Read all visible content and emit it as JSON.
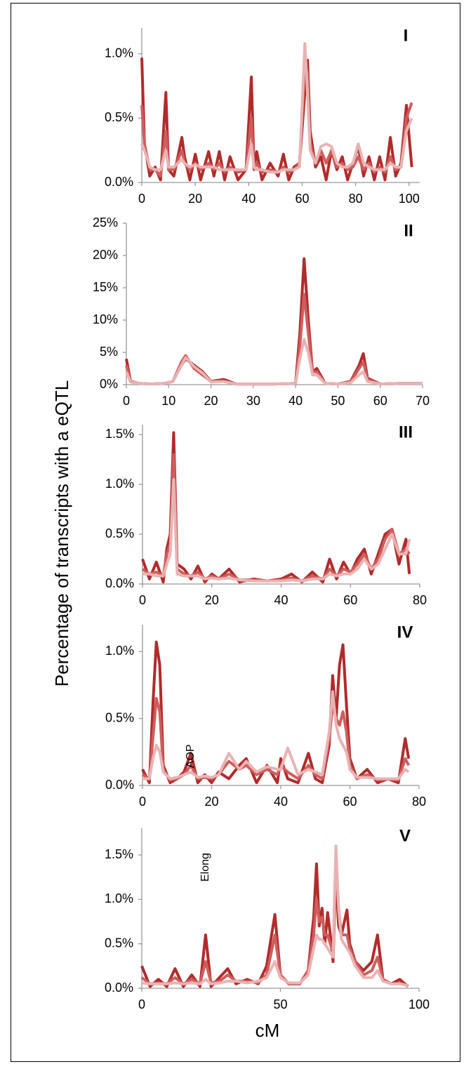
{
  "ylabel": "Percentage of transcripts with a eQTL",
  "xlabel": "cM",
  "chart_data": [
    {
      "type": "line",
      "label": "I",
      "xlim": [
        0,
        104
      ],
      "ylim": [
        0,
        1.2
      ],
      "xticks": [
        0,
        20,
        40,
        60,
        80,
        100
      ],
      "yticks": [
        {
          "value": 0,
          "label": "0.0%"
        },
        {
          "value": 0.5,
          "label": "0.5%"
        },
        {
          "value": 1,
          "label": "1.0%"
        }
      ],
      "x": [
        0,
        1,
        3,
        5,
        7,
        9,
        10,
        12,
        15,
        16,
        18,
        20,
        22,
        25,
        27,
        29,
        31,
        33,
        36,
        39,
        41,
        42,
        43,
        45,
        48,
        51,
        53,
        55,
        57,
        59,
        61,
        62,
        63,
        65,
        67,
        69,
        71,
        73,
        75,
        77,
        79,
        81,
        83,
        85,
        87,
        89,
        91,
        93,
        95,
        97,
        99,
        101
      ],
      "series": [
        {
          "color": "#b22b2b",
          "values": [
            0.97,
            0.3,
            0.05,
            0.12,
            0.02,
            0.7,
            0.1,
            0.05,
            0.35,
            0.2,
            0.02,
            0.22,
            0.02,
            0.24,
            0.05,
            0.24,
            0.02,
            0.2,
            0.02,
            0.1,
            0.82,
            0.1,
            0.24,
            0.02,
            0.15,
            0.05,
            0.22,
            0.02,
            0.12,
            0.15,
            0.7,
            0.95,
            0.4,
            0.12,
            0.2,
            0.02,
            0.25,
            0.1,
            0.2,
            0.02,
            0.15,
            0.28,
            0.05,
            0.2,
            0.02,
            0.2,
            0.02,
            0.35,
            0.05,
            0.15,
            0.6,
            0.12
          ]
        },
        {
          "color": "#cf5d5d",
          "values": [
            0.6,
            0.3,
            0.1,
            0.1,
            0.05,
            0.4,
            0.1,
            0.1,
            0.25,
            0.15,
            0.1,
            0.15,
            0.1,
            0.15,
            0.1,
            0.15,
            0.08,
            0.12,
            0.08,
            0.1,
            0.5,
            0.1,
            0.15,
            0.08,
            0.1,
            0.08,
            0.12,
            0.08,
            0.1,
            0.15,
            0.9,
            0.85,
            0.3,
            0.15,
            0.25,
            0.15,
            0.25,
            0.12,
            0.15,
            0.1,
            0.12,
            0.2,
            0.1,
            0.15,
            0.08,
            0.12,
            0.08,
            0.2,
            0.1,
            0.12,
            0.5,
            0.62
          ]
        },
        {
          "color": "#e9b3b3",
          "values": [
            0.3,
            0.25,
            0.12,
            0.1,
            0.1,
            0.25,
            0.12,
            0.12,
            0.18,
            0.15,
            0.12,
            0.14,
            0.12,
            0.12,
            0.12,
            0.1,
            0.1,
            0.1,
            0.1,
            0.1,
            0.3,
            0.12,
            0.1,
            0.1,
            0.08,
            0.08,
            0.1,
            0.1,
            0.1,
            0.12,
            1.08,
            0.7,
            0.25,
            0.15,
            0.28,
            0.3,
            0.28,
            0.15,
            0.12,
            0.12,
            0.15,
            0.3,
            0.15,
            0.12,
            0.1,
            0.1,
            0.1,
            0.15,
            0.12,
            0.12,
            0.4,
            0.5
          ]
        }
      ]
    },
    {
      "type": "line",
      "label": "II",
      "xlim": [
        0,
        70
      ],
      "ylim": [
        0,
        25
      ],
      "xticks": [
        0,
        10,
        20,
        30,
        40,
        50,
        60,
        70
      ],
      "yticks": [
        {
          "value": 0,
          "label": "0%"
        },
        {
          "value": 5,
          "label": "5%"
        },
        {
          "value": 10,
          "label": "10%"
        },
        {
          "value": 15,
          "label": "15%"
        },
        {
          "value": 20,
          "label": "20%"
        },
        {
          "value": 25,
          "label": "25%"
        }
      ],
      "x": [
        0,
        1,
        3,
        6,
        9,
        11,
        13,
        14,
        16,
        18,
        20,
        23,
        26,
        30,
        35,
        40,
        41,
        42,
        43,
        44,
        45,
        47,
        50,
        53,
        55,
        56,
        57,
        60,
        65,
        70
      ],
      "series": [
        {
          "color": "#b22b2b",
          "values": [
            4,
            0.5,
            0.2,
            0.1,
            0.2,
            0.5,
            3,
            4,
            3,
            2,
            0.5,
            0.8,
            0.1,
            0.1,
            0.1,
            0.2,
            8,
            19.5,
            10,
            2,
            2.5,
            0.2,
            0.1,
            0.5,
            3,
            4.8,
            1,
            0.1,
            0.2,
            0.2
          ]
        },
        {
          "color": "#cf5d5d",
          "values": [
            3,
            0.5,
            0.2,
            0.1,
            0.2,
            0.5,
            3.5,
            4.5,
            2.5,
            1.5,
            0.5,
            0.5,
            0.1,
            0.1,
            0.1,
            0.2,
            6,
            14,
            8,
            2,
            2,
            0.2,
            0.1,
            0.4,
            2.5,
            3.5,
            0.8,
            0.1,
            0.2,
            0.2
          ]
        },
        {
          "color": "#e9b3b3",
          "values": [
            2,
            0.4,
            0.2,
            0.1,
            0.2,
            0.5,
            3,
            4.2,
            2.8,
            1.8,
            0.4,
            0.5,
            0.1,
            0.1,
            0.1,
            0.2,
            4,
            7,
            5,
            1.5,
            1.5,
            0.2,
            0.1,
            0.3,
            1.5,
            2,
            0.5,
            0.1,
            0.2,
            0.2
          ]
        }
      ]
    },
    {
      "type": "line",
      "label": "III",
      "xlim": [
        0,
        80
      ],
      "ylim": [
        0,
        1.6
      ],
      "xticks": [
        0,
        20,
        40,
        60,
        80
      ],
      "yticks": [
        {
          "value": 0,
          "label": "0.0%"
        },
        {
          "value": 0.5,
          "label": "0.5%"
        },
        {
          "value": 1,
          "label": "1.0%"
        },
        {
          "value": 1.5,
          "label": "1.5%"
        }
      ],
      "x": [
        0,
        2,
        4,
        6,
        7,
        8,
        9,
        10,
        12,
        14,
        16,
        18,
        20,
        22,
        25,
        28,
        32,
        36,
        40,
        43,
        46,
        49,
        52,
        54,
        56,
        58,
        60,
        62,
        64,
        66,
        68,
        70,
        72,
        74,
        76,
        77
      ],
      "series": [
        {
          "color": "#b22b2b",
          "values": [
            0.25,
            0.05,
            0.22,
            0.02,
            0.35,
            0.5,
            1.52,
            0.2,
            0.15,
            0.05,
            0.18,
            0.02,
            0.1,
            0.05,
            0.15,
            0.02,
            0.05,
            0.03,
            0.05,
            0.1,
            0.02,
            0.12,
            0.02,
            0.25,
            0.05,
            0.22,
            0.1,
            0.25,
            0.35,
            0.1,
            0.3,
            0.5,
            0.55,
            0.2,
            0.45,
            0.1
          ]
        },
        {
          "color": "#cf5d5d",
          "values": [
            0.15,
            0.1,
            0.12,
            0.08,
            0.3,
            0.4,
            1.3,
            0.15,
            0.1,
            0.08,
            0.12,
            0.05,
            0.08,
            0.05,
            0.1,
            0.04,
            0.04,
            0.03,
            0.04,
            0.06,
            0.03,
            0.08,
            0.05,
            0.15,
            0.08,
            0.15,
            0.12,
            0.2,
            0.3,
            0.15,
            0.25,
            0.45,
            0.55,
            0.3,
            0.35,
            0.3
          ]
        },
        {
          "color": "#e9b3b3",
          "values": [
            0.1,
            0.1,
            0.08,
            0.08,
            0.2,
            0.3,
            1.05,
            0.1,
            0.08,
            0.08,
            0.08,
            0.05,
            0.06,
            0.05,
            0.06,
            0.04,
            0.03,
            0.03,
            0.03,
            0.04,
            0.03,
            0.05,
            0.05,
            0.1,
            0.08,
            0.1,
            0.1,
            0.15,
            0.25,
            0.15,
            0.2,
            0.35,
            0.5,
            0.3,
            0.3,
            0.45
          ]
        }
      ]
    },
    {
      "type": "line",
      "label": "IV",
      "xlim": [
        0,
        80
      ],
      "ylim": [
        0,
        1.2
      ],
      "xticks": [
        0,
        20,
        40,
        60,
        80
      ],
      "yticks": [
        {
          "value": 0,
          "label": "0.0%"
        },
        {
          "value": 0.5,
          "label": "0.5%"
        },
        {
          "value": 1,
          "label": "1.0%"
        }
      ],
      "annotations": [
        {
          "text": "AOP",
          "x": 14,
          "y": 0.13
        }
      ],
      "x": [
        0,
        2,
        3,
        4,
        5,
        6,
        8,
        10,
        12,
        14,
        16,
        18,
        20,
        22,
        25,
        28,
        30,
        33,
        36,
        39,
        40,
        42,
        45,
        48,
        50,
        52,
        54,
        55,
        56,
        57,
        58,
        59,
        60,
        62,
        65,
        68,
        71,
        74,
        76,
        77
      ],
      "series": [
        {
          "color": "#b22b2b",
          "values": [
            0.12,
            0.02,
            0.6,
            1.07,
            0.9,
            0.15,
            0.02,
            0.05,
            0.1,
            0.24,
            0.02,
            0.08,
            0.02,
            0.1,
            0.05,
            0.15,
            0.2,
            0.02,
            0.15,
            0.02,
            0.2,
            0.05,
            0.02,
            0.24,
            0.05,
            0.02,
            0.3,
            0.82,
            0.5,
            0.9,
            1.05,
            0.6,
            0.2,
            0.05,
            0.12,
            0.02,
            0.05,
            0.02,
            0.35,
            0.2
          ]
        },
        {
          "color": "#cf5d5d",
          "values": [
            0.08,
            0.05,
            0.35,
            0.65,
            0.55,
            0.12,
            0.04,
            0.05,
            0.08,
            0.15,
            0.05,
            0.06,
            0.05,
            0.08,
            0.18,
            0.12,
            0.15,
            0.08,
            0.12,
            0.08,
            0.15,
            0.1,
            0.05,
            0.15,
            0.08,
            0.05,
            0.35,
            0.6,
            0.5,
            0.45,
            0.55,
            0.4,
            0.15,
            0.05,
            0.08,
            0.04,
            0.05,
            0.04,
            0.2,
            0.15
          ]
        },
        {
          "color": "#e9b3b3",
          "values": [
            0.05,
            0.05,
            0.2,
            0.3,
            0.25,
            0.1,
            0.05,
            0.06,
            0.08,
            0.1,
            0.06,
            0.07,
            0.06,
            0.08,
            0.24,
            0.12,
            0.18,
            0.1,
            0.14,
            0.12,
            0.12,
            0.28,
            0.08,
            0.12,
            0.1,
            0.08,
            0.4,
            0.7,
            0.45,
            0.35,
            0.3,
            0.25,
            0.12,
            0.06,
            0.06,
            0.05,
            0.05,
            0.05,
            0.12,
            0.1
          ]
        }
      ]
    },
    {
      "type": "line",
      "label": "V",
      "xlim": [
        0,
        100
      ],
      "ylim": [
        0,
        1.8
      ],
      "xticks": [
        0,
        50,
        100
      ],
      "yticks": [
        {
          "value": 0,
          "label": "0.0%"
        },
        {
          "value": 0.5,
          "label": "0.5%"
        },
        {
          "value": 1,
          "label": "1.0%"
        },
        {
          "value": 1.5,
          "label": "1.5%"
        }
      ],
      "annotations": [
        {
          "text": "Elong",
          "x": 23,
          "y": 1.2
        }
      ],
      "x": [
        0,
        3,
        6,
        9,
        12,
        15,
        18,
        21,
        23,
        25,
        28,
        31,
        34,
        38,
        42,
        45,
        48,
        50,
        53,
        57,
        60,
        62,
        63,
        64,
        65,
        66,
        67,
        68,
        69,
        70,
        71,
        72,
        74,
        75,
        77,
        80,
        83,
        85,
        87,
        90,
        93,
        96
      ],
      "series": [
        {
          "color": "#b22b2b",
          "values": [
            0.25,
            0.02,
            0.1,
            0.02,
            0.22,
            0.02,
            0.15,
            0.02,
            0.6,
            0.02,
            0.12,
            0.22,
            0.05,
            0.1,
            0.05,
            0.25,
            0.83,
            0.15,
            0.05,
            0.05,
            0.2,
            0.8,
            1.4,
            0.7,
            0.9,
            0.5,
            0.85,
            0.6,
            0.3,
            1.3,
            0.7,
            0.6,
            0.88,
            0.5,
            0.3,
            0.2,
            0.3,
            0.6,
            0.1,
            0.05,
            0.1,
            0.02
          ]
        },
        {
          "color": "#cf5d5d",
          "values": [
            0.12,
            0.05,
            0.06,
            0.05,
            0.12,
            0.05,
            0.1,
            0.05,
            0.3,
            0.06,
            0.08,
            0.15,
            0.08,
            0.08,
            0.06,
            0.15,
            0.6,
            0.15,
            0.05,
            0.05,
            0.2,
            0.6,
            1.0,
            0.75,
            0.8,
            0.6,
            0.6,
            0.5,
            0.4,
            1.45,
            0.9,
            0.6,
            0.6,
            0.45,
            0.3,
            0.15,
            0.2,
            0.35,
            0.1,
            0.05,
            0.06,
            0.03
          ]
        },
        {
          "color": "#e9b3b3",
          "values": [
            0.06,
            0.05,
            0.05,
            0.05,
            0.06,
            0.05,
            0.06,
            0.05,
            0.1,
            0.05,
            0.06,
            0.08,
            0.08,
            0.06,
            0.08,
            0.12,
            0.3,
            0.12,
            0.06,
            0.06,
            0.15,
            0.45,
            0.6,
            0.55,
            0.55,
            0.5,
            0.45,
            0.4,
            0.35,
            1.6,
            0.9,
            0.55,
            0.45,
            0.4,
            0.25,
            0.12,
            0.12,
            0.2,
            0.08,
            0.05,
            0.05,
            0.03
          ]
        }
      ]
    }
  ]
}
